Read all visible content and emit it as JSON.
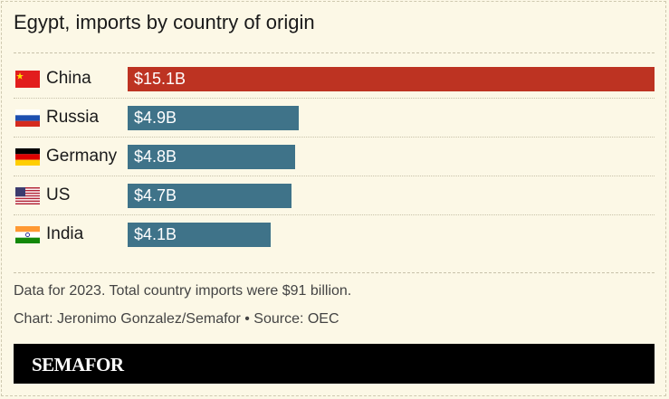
{
  "chart_data": {
    "type": "bar",
    "orientation": "horizontal",
    "title": "Egypt, imports by country of origin",
    "categories": [
      "China",
      "Russia",
      "Germany",
      "US",
      "India"
    ],
    "values": [
      15.1,
      4.9,
      4.8,
      4.7,
      4.1
    ],
    "value_labels": [
      "$15.1B",
      "$4.9B",
      "$4.8B",
      "$4.7B",
      "$4.1B"
    ],
    "unit": "billion USD",
    "flags": [
      "china-flag",
      "russia-flag",
      "germany-flag",
      "us-flag",
      "india-flag"
    ],
    "colors": [
      "#bd3322",
      "#3f7389",
      "#3f7389",
      "#3f7389",
      "#3f7389"
    ],
    "grid": false
  },
  "footer": {
    "note": "Data for 2023. Total country imports were $91 billion.",
    "credit": "Chart: Jeronimo Gonzalez/Semafor • Source: OEC",
    "brand": "SEMAFOR"
  }
}
